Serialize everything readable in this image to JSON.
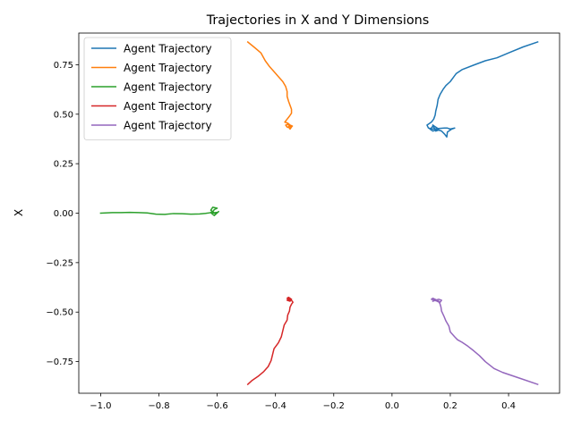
{
  "chart_data": {
    "type": "line",
    "title": "Trajectories in X and Y Dimensions",
    "xlabel": "",
    "ylabel": "X",
    "xlim": [
      -1.075,
      0.575
    ],
    "ylim": [
      -0.91,
      0.91
    ],
    "xticks": [
      -1.0,
      -0.8,
      -0.6,
      -0.4,
      -0.2,
      0.0,
      0.2,
      0.4
    ],
    "xtick_labels": [
      "−1.0",
      "−0.8",
      "−0.6",
      "−0.4",
      "−0.2",
      "0.0",
      "0.2",
      "0.4"
    ],
    "yticks": [
      -0.75,
      -0.5,
      -0.25,
      0.0,
      0.25,
      0.5,
      0.75
    ],
    "ytick_labels": [
      "−0.75",
      "−0.50",
      "−0.25",
      "0.00",
      "0.25",
      "0.50",
      "0.75"
    ],
    "grid": false,
    "legend_position": "top-left",
    "series": [
      {
        "name": "Agent Trajectory",
        "color": "#1f77b4",
        "x": [
          0.5,
          0.45,
          0.4,
          0.36,
          0.32,
          0.28,
          0.24,
          0.22,
          0.21,
          0.2,
          0.185,
          0.175,
          0.165,
          0.158,
          0.155,
          0.15,
          0.148,
          0.143,
          0.135,
          0.125,
          0.12,
          0.125,
          0.14,
          0.16,
          0.18,
          0.19,
          0.2,
          0.215,
          0.205,
          0.19,
          0.188,
          0.18,
          0.17,
          0.16,
          0.15,
          0.145,
          0.14,
          0.135,
          0.13,
          0.14,
          0.15,
          0.16,
          0.155,
          0.145,
          0.14
        ],
        "y": [
          0.865,
          0.84,
          0.81,
          0.785,
          0.77,
          0.748,
          0.725,
          0.705,
          0.685,
          0.665,
          0.645,
          0.625,
          0.6,
          0.575,
          0.545,
          0.515,
          0.495,
          0.475,
          0.46,
          0.45,
          0.445,
          0.43,
          0.425,
          0.428,
          0.43,
          0.43,
          0.425,
          0.43,
          0.425,
          0.41,
          0.385,
          0.4,
          0.415,
          0.42,
          0.415,
          0.43,
          0.44,
          0.43,
          0.425,
          0.415,
          0.42,
          0.425,
          0.43,
          0.44,
          0.445
        ]
      },
      {
        "name": "Agent Trajectory",
        "color": "#ff7f0e",
        "x": [
          -0.495,
          -0.47,
          -0.45,
          -0.435,
          -0.42,
          -0.405,
          -0.39,
          -0.375,
          -0.365,
          -0.36,
          -0.36,
          -0.355,
          -0.35,
          -0.345,
          -0.345,
          -0.352,
          -0.36,
          -0.368,
          -0.358,
          -0.35,
          -0.342,
          -0.35,
          -0.36,
          -0.365,
          -0.355,
          -0.35,
          -0.345,
          -0.35,
          -0.355
        ],
        "y": [
          0.865,
          0.835,
          0.81,
          0.77,
          0.74,
          0.715,
          0.69,
          0.665,
          0.64,
          0.615,
          0.59,
          0.565,
          0.545,
          0.525,
          0.505,
          0.49,
          0.475,
          0.46,
          0.455,
          0.445,
          0.44,
          0.43,
          0.435,
          0.445,
          0.45,
          0.44,
          0.435,
          0.425,
          0.44
        ]
      },
      {
        "name": "Agent Trajectory",
        "color": "#2ca02c",
        "x": [
          -1.0,
          -0.96,
          -0.93,
          -0.9,
          -0.87,
          -0.84,
          -0.81,
          -0.78,
          -0.75,
          -0.72,
          -0.69,
          -0.66,
          -0.64,
          -0.625,
          -0.615,
          -0.61,
          -0.6,
          -0.615,
          -0.622,
          -0.605,
          -0.595,
          -0.61,
          -0.62,
          -0.6
        ],
        "y": [
          0.0,
          0.003,
          0.003,
          0.004,
          0.003,
          0.001,
          -0.005,
          -0.006,
          -0.002,
          -0.003,
          -0.005,
          -0.004,
          -0.001,
          0.002,
          0.008,
          0.018,
          0.025,
          0.03,
          0.015,
          -0.005,
          0.008,
          -0.012,
          0.0,
          0.004
        ]
      },
      {
        "name": "Agent Trajectory",
        "color": "#d62728",
        "x": [
          -0.495,
          -0.48,
          -0.46,
          -0.44,
          -0.425,
          -0.415,
          -0.41,
          -0.405,
          -0.39,
          -0.38,
          -0.375,
          -0.37,
          -0.36,
          -0.358,
          -0.352,
          -0.35,
          -0.345,
          -0.34,
          -0.345,
          -0.355,
          -0.36,
          -0.35,
          -0.345,
          -0.355,
          -0.36,
          -0.35
        ],
        "y": [
          -0.865,
          -0.845,
          -0.825,
          -0.8,
          -0.775,
          -0.745,
          -0.715,
          -0.685,
          -0.655,
          -0.625,
          -0.595,
          -0.565,
          -0.54,
          -0.515,
          -0.495,
          -0.475,
          -0.46,
          -0.45,
          -0.44,
          -0.43,
          -0.44,
          -0.445,
          -0.435,
          -0.425,
          -0.43,
          -0.44
        ]
      },
      {
        "name": "Agent Trajectory",
        "color": "#9467bd",
        "x": [
          0.5,
          0.44,
          0.38,
          0.35,
          0.32,
          0.3,
          0.28,
          0.26,
          0.24,
          0.225,
          0.215,
          0.2,
          0.195,
          0.185,
          0.178,
          0.17,
          0.168,
          0.165,
          0.162,
          0.155,
          0.145,
          0.135,
          0.14,
          0.155,
          0.165,
          0.17,
          0.16,
          0.15,
          0.14
        ],
        "y": [
          -0.865,
          -0.835,
          -0.805,
          -0.785,
          -0.75,
          -0.72,
          -0.695,
          -0.672,
          -0.652,
          -0.64,
          -0.625,
          -0.6,
          -0.57,
          -0.545,
          -0.52,
          -0.495,
          -0.475,
          -0.46,
          -0.45,
          -0.445,
          -0.44,
          -0.435,
          -0.43,
          -0.44,
          -0.45,
          -0.44,
          -0.435,
          -0.44,
          -0.445
        ]
      }
    ]
  }
}
